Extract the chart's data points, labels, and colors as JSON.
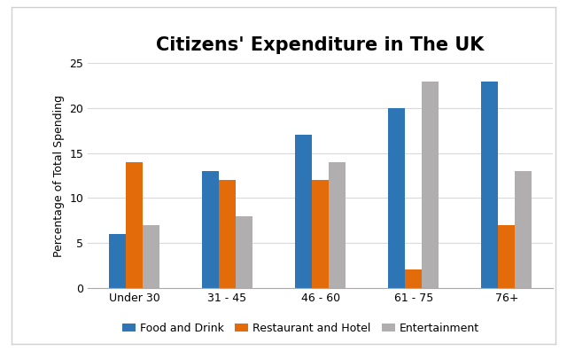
{
  "title": "Citizens' Expenditure in The UK",
  "ylabel": "Percentage of Total Spending",
  "categories": [
    "Under 30",
    "31 - 45",
    "46 - 60",
    "61 - 75",
    "76+"
  ],
  "series": [
    {
      "label": "Food and Drink",
      "color": "#2e75b6",
      "values": [
        6,
        13,
        17,
        20,
        23
      ]
    },
    {
      "label": "Restaurant and Hotel",
      "color": "#e36b0a",
      "values": [
        14,
        12,
        12,
        2,
        7
      ]
    },
    {
      "label": "Entertainment",
      "color": "#b0aeae",
      "values": [
        7,
        8,
        14,
        23,
        13
      ]
    }
  ],
  "ylim": [
    0,
    25
  ],
  "yticks": [
    0,
    5,
    10,
    15,
    20,
    25
  ],
  "fig_background": "#ffffff",
  "box_background": "#ffffff",
  "box_edge_color": "#d0d0d0",
  "grid_color": "#d9d9d9",
  "bar_width": 0.18,
  "title_fontsize": 15,
  "label_fontsize": 9,
  "tick_fontsize": 9,
  "legend_fontsize": 9
}
